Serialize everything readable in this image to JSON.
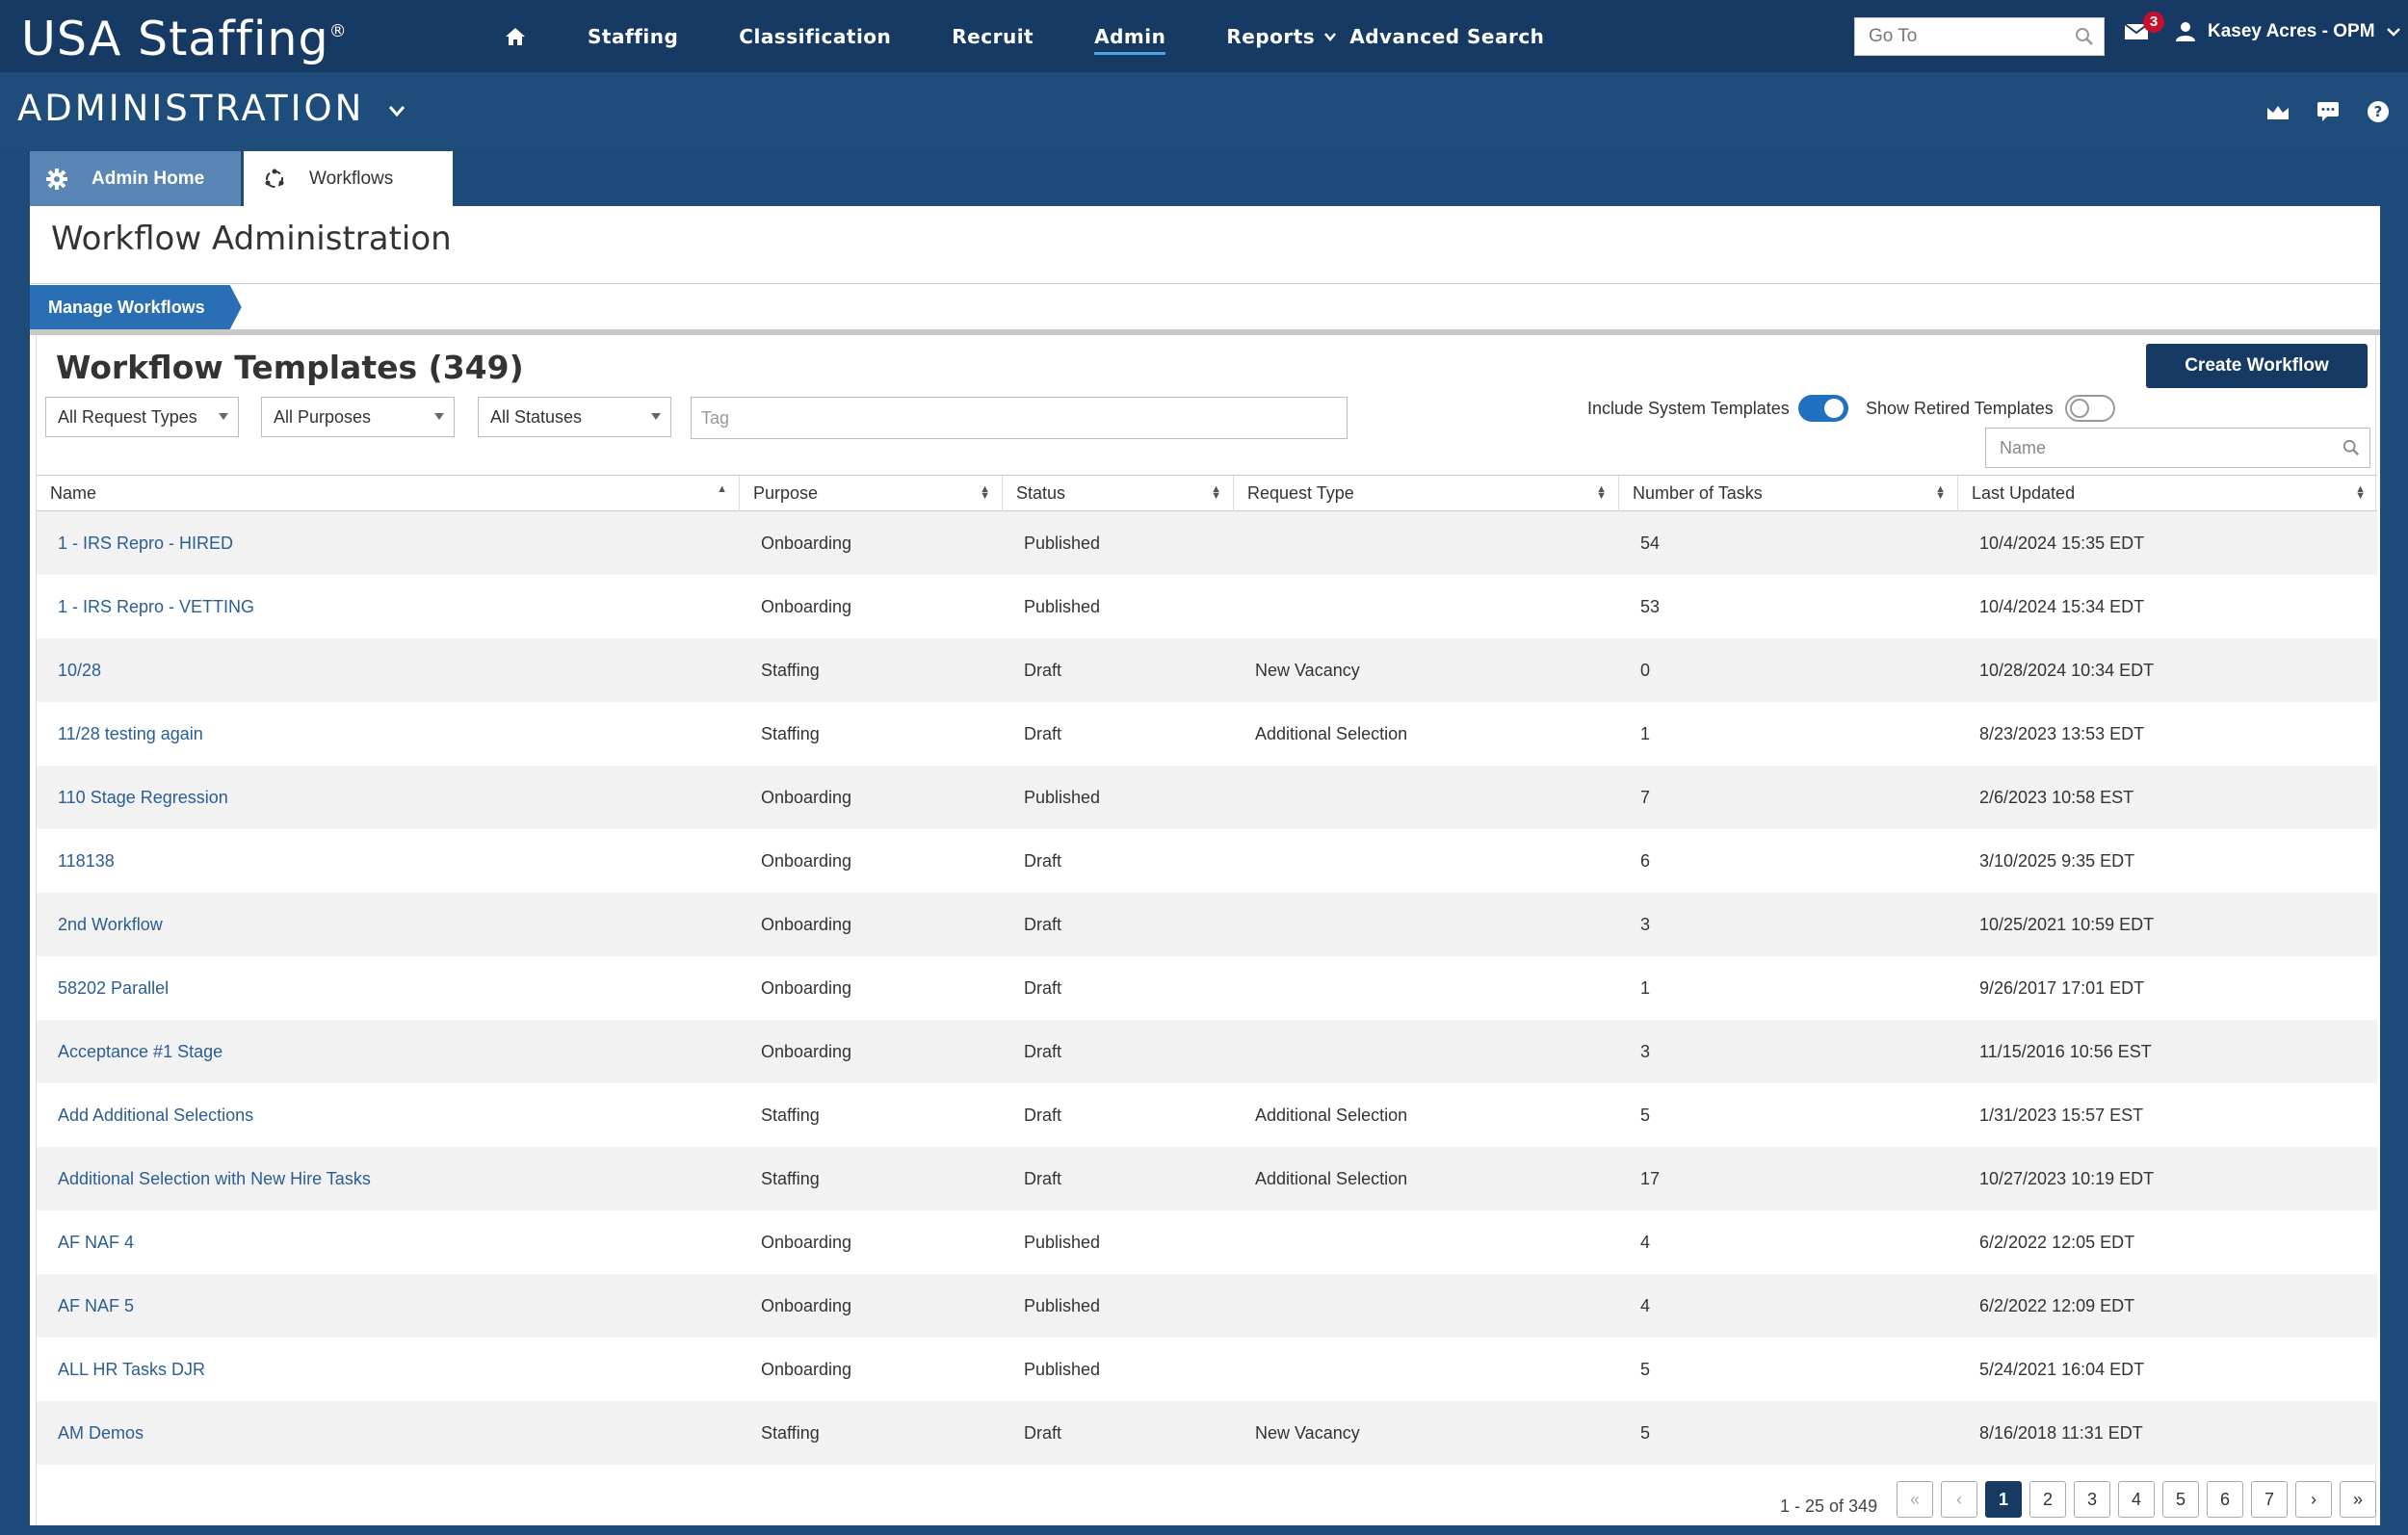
{
  "nav": {
    "logo": "USA Staffing",
    "logo_reg": "®",
    "items": [
      {
        "label": "Staffing"
      },
      {
        "label": "Classification"
      },
      {
        "label": "Recruit"
      },
      {
        "label": "Admin"
      },
      {
        "label": "Reports"
      },
      {
        "label": "Advanced Search"
      }
    ],
    "goto_placeholder": "Go To",
    "mail_count": "3",
    "user_name": "Kasey Acres - OPM"
  },
  "admin": {
    "title": "ADMINISTRATION"
  },
  "tabs": {
    "home": "Admin Home",
    "workflows": "Workflows"
  },
  "page": {
    "title": "Workflow Administration",
    "breadcrumb": "Manage Workflows",
    "templates_title": "Workflow Templates (349)",
    "create_button": "Create Workflow"
  },
  "filters": {
    "request_types": "All Request Types",
    "purposes": "All Purposes",
    "statuses": "All Statuses",
    "tag_placeholder": "Tag",
    "include_system_label": "Include System Templates",
    "include_system_on": true,
    "show_retired_label": "Show Retired Templates",
    "show_retired_on": false,
    "name_placeholder": "Name"
  },
  "table": {
    "columns": [
      "Name",
      "Purpose",
      "Status",
      "Request Type",
      "Number of Tasks",
      "Last Updated"
    ],
    "rows": [
      {
        "name": "1 - IRS Repro - HIRED",
        "purpose": "Onboarding",
        "status": "Published",
        "rtype": "",
        "tasks": "54",
        "updated": "10/4/2024 15:35 EDT"
      },
      {
        "name": "1 - IRS Repro - VETTING",
        "purpose": "Onboarding",
        "status": "Published",
        "rtype": "",
        "tasks": "53",
        "updated": "10/4/2024 15:34 EDT"
      },
      {
        "name": "10/28",
        "purpose": "Staffing",
        "status": "Draft",
        "rtype": "New Vacancy",
        "tasks": "0",
        "updated": "10/28/2024 10:34 EDT"
      },
      {
        "name": "11/28 testing again",
        "purpose": "Staffing",
        "status": "Draft",
        "rtype": "Additional Selection",
        "tasks": "1",
        "updated": "8/23/2023 13:53 EDT"
      },
      {
        "name": "110 Stage Regression",
        "purpose": "Onboarding",
        "status": "Published",
        "rtype": "",
        "tasks": "7",
        "updated": "2/6/2023 10:58 EST"
      },
      {
        "name": "118138",
        "purpose": "Onboarding",
        "status": "Draft",
        "rtype": "",
        "tasks": "6",
        "updated": "3/10/2025 9:35 EDT"
      },
      {
        "name": "2nd Workflow",
        "purpose": "Onboarding",
        "status": "Draft",
        "rtype": "",
        "tasks": "3",
        "updated": "10/25/2021 10:59 EDT"
      },
      {
        "name": "58202 Parallel",
        "purpose": "Onboarding",
        "status": "Draft",
        "rtype": "",
        "tasks": "1",
        "updated": "9/26/2017 17:01 EDT"
      },
      {
        "name": "Acceptance #1 Stage",
        "purpose": "Onboarding",
        "status": "Draft",
        "rtype": "",
        "tasks": "3",
        "updated": "11/15/2016 10:56 EST"
      },
      {
        "name": "Add Additional Selections",
        "purpose": "Staffing",
        "status": "Draft",
        "rtype": "Additional Selection",
        "tasks": "5",
        "updated": "1/31/2023 15:57 EST"
      },
      {
        "name": "Additional Selection with New Hire Tasks",
        "purpose": "Staffing",
        "status": "Draft",
        "rtype": "Additional Selection",
        "tasks": "17",
        "updated": "10/27/2023 10:19 EDT"
      },
      {
        "name": "AF NAF 4",
        "purpose": "Onboarding",
        "status": "Published",
        "rtype": "",
        "tasks": "4",
        "updated": "6/2/2022 12:05 EDT"
      },
      {
        "name": "AF NAF 5",
        "purpose": "Onboarding",
        "status": "Published",
        "rtype": "",
        "tasks": "4",
        "updated": "6/2/2022 12:09 EDT"
      },
      {
        "name": "ALL HR Tasks DJR",
        "purpose": "Onboarding",
        "status": "Published",
        "rtype": "",
        "tasks": "5",
        "updated": "5/24/2021 16:04 EDT"
      },
      {
        "name": "AM Demos",
        "purpose": "Staffing",
        "status": "Draft",
        "rtype": "New Vacancy",
        "tasks": "5",
        "updated": "8/16/2018 11:31 EDT"
      }
    ]
  },
  "pager": {
    "info": "1 - 25 of 349",
    "pages": [
      "1",
      "2",
      "3",
      "4",
      "5",
      "6",
      "7"
    ],
    "current": "1"
  }
}
